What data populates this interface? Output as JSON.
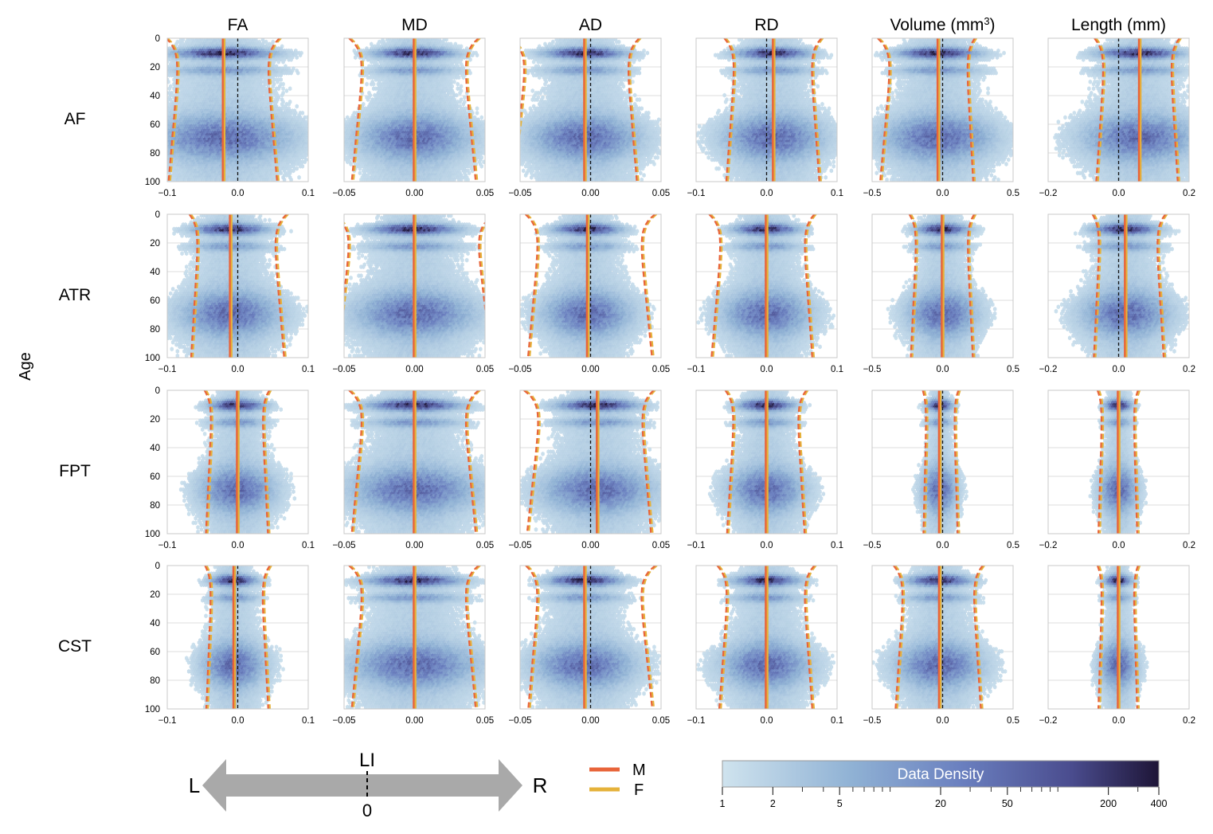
{
  "figure": {
    "ylabel": "Age",
    "columns": [
      {
        "key": "FA",
        "label": "FA",
        "sup": "",
        "ticks": [
          "−0.1",
          "0.0",
          "0.1"
        ],
        "xlim": [
          -0.1,
          0.1
        ]
      },
      {
        "key": "MD",
        "label": "MD",
        "sup": "",
        "ticks": [
          "−0.05",
          "0.00",
          "0.05"
        ],
        "xlim": [
          -0.05,
          0.05
        ]
      },
      {
        "key": "AD",
        "label": "AD",
        "sup": "",
        "ticks": [
          "−0.05",
          "0.00",
          "0.05"
        ],
        "xlim": [
          -0.05,
          0.05
        ]
      },
      {
        "key": "RD",
        "label": "RD",
        "sup": "",
        "ticks": [
          "−0.1",
          "0.0",
          "0.1"
        ],
        "xlim": [
          -0.1,
          0.1
        ]
      },
      {
        "key": "Volume",
        "label": "Volume  (mm",
        "sup": "3",
        "label_end": ")",
        "ticks": [
          "−0.5",
          "0.0",
          "0.5"
        ],
        "xlim": [
          -0.5,
          0.5
        ]
      },
      {
        "key": "Length",
        "label": "Length  (mm)",
        "sup": "",
        "ticks": [
          "−0.2",
          "0.0",
          "0.2"
        ],
        "xlim": [
          -0.2,
          0.2
        ]
      }
    ],
    "rows": [
      {
        "label": "AF"
      },
      {
        "label": "ATR"
      },
      {
        "label": "FPT"
      },
      {
        "label": "CST"
      }
    ],
    "y_ticks": [
      "0",
      "20",
      "40",
      "60",
      "80",
      "100"
    ]
  },
  "chart_data": {
    "type": "hexbin",
    "x_measure": "laterality index (LI)",
    "y_axis": {
      "ylim": [
        0,
        100
      ],
      "inverted": true,
      "ticks": [
        0,
        20,
        40,
        60,
        80,
        100
      ]
    },
    "grid": "horizontal",
    "series": [
      {
        "name": "M",
        "color": "#e8643a"
      },
      {
        "name": "F",
        "color": "#e5b23a"
      }
    ],
    "panels": [
      {
        "row": "AF",
        "col": "FA",
        "median": -0.02,
        "spread": 0.055,
        "tilt": 0.0,
        "lo": -0.09,
        "hi": 0.05
      },
      {
        "row": "AF",
        "col": "MD",
        "median": 0.0,
        "spread": 0.022,
        "tilt": 0.0,
        "lo": -0.04,
        "hi": 0.04
      },
      {
        "row": "AF",
        "col": "AD",
        "median": -0.004,
        "spread": 0.022,
        "tilt": 0.0,
        "lo": -0.05,
        "hi": 0.03
      },
      {
        "row": "AF",
        "col": "RD",
        "median": 0.01,
        "spread": 0.04,
        "tilt": 0.0,
        "lo": -0.05,
        "hi": 0.07
      },
      {
        "row": "AF",
        "col": "Volume",
        "median": -0.03,
        "spread": 0.22,
        "tilt": 0.0,
        "lo": -0.4,
        "hi": 0.2
      },
      {
        "row": "AF",
        "col": "Length",
        "median": 0.06,
        "spread": 0.09,
        "tilt": 0.0,
        "lo": -0.05,
        "hi": 0.16
      },
      {
        "row": "ATR",
        "col": "FA",
        "median": -0.01,
        "spread": 0.04,
        "tilt": 0.0,
        "lo": -0.06,
        "hi": 0.06
      },
      {
        "row": "ATR",
        "col": "MD",
        "median": 0.0,
        "spread": 0.024,
        "tilt": 0.0,
        "lo": -0.05,
        "hi": 0.05
      },
      {
        "row": "ATR",
        "col": "AD",
        "median": -0.002,
        "spread": 0.018,
        "tilt": 0.0,
        "lo": -0.04,
        "hi": 0.04
      },
      {
        "row": "ATR",
        "col": "RD",
        "median": 0.0,
        "spread": 0.035,
        "tilt": 0.0,
        "lo": -0.07,
        "hi": 0.06
      },
      {
        "row": "ATR",
        "col": "Volume",
        "median": 0.0,
        "spread": 0.14,
        "tilt": 0.0,
        "lo": -0.2,
        "hi": 0.2
      },
      {
        "row": "ATR",
        "col": "Length",
        "median": 0.02,
        "spread": 0.07,
        "tilt": 0.0,
        "lo": -0.06,
        "hi": 0.12
      },
      {
        "row": "FPT",
        "col": "FA",
        "median": 0.0,
        "spread": 0.03,
        "tilt": 0.0,
        "lo": -0.04,
        "hi": 0.04
      },
      {
        "row": "FPT",
        "col": "MD",
        "median": 0.0,
        "spread": 0.025,
        "tilt": 0.0,
        "lo": -0.04,
        "hi": 0.04
      },
      {
        "row": "FPT",
        "col": "AD",
        "median": 0.005,
        "spread": 0.022,
        "tilt": 0.0,
        "lo": -0.04,
        "hi": 0.04
      },
      {
        "row": "FPT",
        "col": "RD",
        "median": 0.0,
        "spread": 0.03,
        "tilt": 0.0,
        "lo": -0.05,
        "hi": 0.05
      },
      {
        "row": "FPT",
        "col": "Volume",
        "median": -0.02,
        "spread": 0.07,
        "tilt": 0.0,
        "lo": -0.12,
        "hi": 0.1
      },
      {
        "row": "FPT",
        "col": "Length",
        "median": 0.0,
        "spread": 0.03,
        "tilt": 0.0,
        "lo": -0.05,
        "hi": 0.05
      },
      {
        "row": "CST",
        "col": "FA",
        "median": -0.005,
        "spread": 0.025,
        "tilt": 0.0,
        "lo": -0.04,
        "hi": 0.04
      },
      {
        "row": "CST",
        "col": "MD",
        "median": 0.0,
        "spread": 0.025,
        "tilt": 0.0,
        "lo": -0.04,
        "hi": 0.04
      },
      {
        "row": "CST",
        "col": "AD",
        "median": -0.004,
        "spread": 0.02,
        "tilt": 0.0,
        "lo": -0.04,
        "hi": 0.04
      },
      {
        "row": "CST",
        "col": "RD",
        "median": 0.0,
        "spread": 0.035,
        "tilt": 0.0,
        "lo": -0.06,
        "hi": 0.06
      },
      {
        "row": "CST",
        "col": "Volume",
        "median": -0.02,
        "spread": 0.17,
        "tilt": 0.0,
        "lo": -0.3,
        "hi": 0.25
      },
      {
        "row": "CST",
        "col": "Length",
        "median": 0.0,
        "spread": 0.03,
        "tilt": 0.0,
        "lo": -0.05,
        "hi": 0.05
      }
    ]
  },
  "legend": {
    "arrow": {
      "left": "L",
      "right": "R",
      "top": "LI",
      "bottom": "0"
    },
    "lines": [
      {
        "label": "M",
        "color": "#e8643a"
      },
      {
        "label": "F",
        "color": "#e5b23a"
      }
    ],
    "colorbar": {
      "title": "Data Density",
      "scale": "log",
      "range": [
        1,
        400
      ],
      "tick_labels": [
        "1",
        "2",
        "5",
        "20",
        "50",
        "200",
        "400"
      ],
      "gradient": [
        "#cfe3ee",
        "#8fb1d4",
        "#6a7fbf",
        "#4a4c8e",
        "#1e1537"
      ]
    }
  }
}
